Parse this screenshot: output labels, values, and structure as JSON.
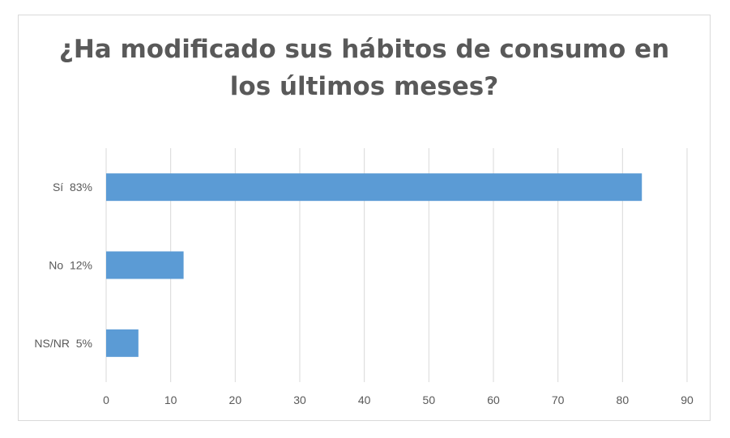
{
  "chart_data": {
    "type": "bar",
    "orientation": "horizontal",
    "title_line1": "¿Ha modificado sus hábitos de consumo en",
    "title_line2": "los últimos meses?",
    "categories": [
      "Sí  83%",
      "No  12%",
      "NS/NR  5%"
    ],
    "values": [
      83,
      12,
      5
    ],
    "xlim": [
      0,
      90
    ],
    "xticks": [
      0,
      10,
      20,
      30,
      40,
      50,
      60,
      70,
      80,
      90
    ],
    "grid": true,
    "legend": "none",
    "bar_color": "#5b9bd5"
  }
}
